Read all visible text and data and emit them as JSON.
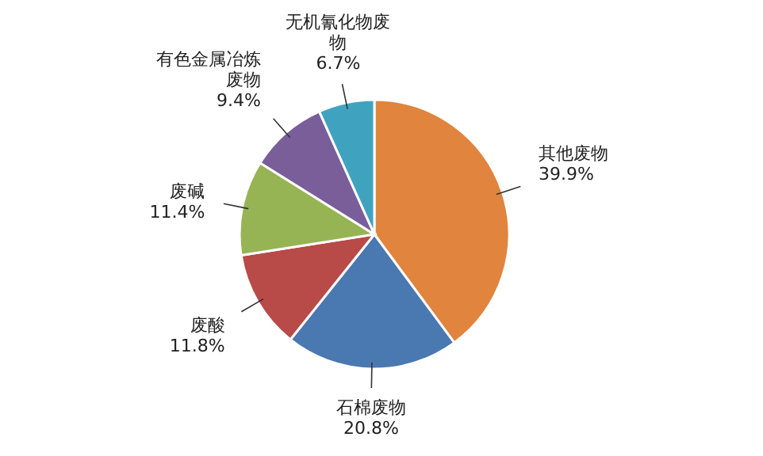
{
  "chart_data": {
    "type": "pie",
    "categories": [
      "其他废物",
      "石棉废物",
      "废酸",
      "废碱",
      "有色金属冶炼废物",
      "无机氰化物废物"
    ],
    "values": [
      39.9,
      20.8,
      11.8,
      11.4,
      9.4,
      6.7
    ],
    "value_labels": [
      "39.9%",
      "20.8%",
      "11.8%",
      "11.4%",
      "9.4%",
      "6.7%"
    ],
    "colors": [
      "#e0843e",
      "#4a78b0",
      "#b84a48",
      "#97b455",
      "#7a5e9a",
      "#3fa3bf"
    ]
  }
}
